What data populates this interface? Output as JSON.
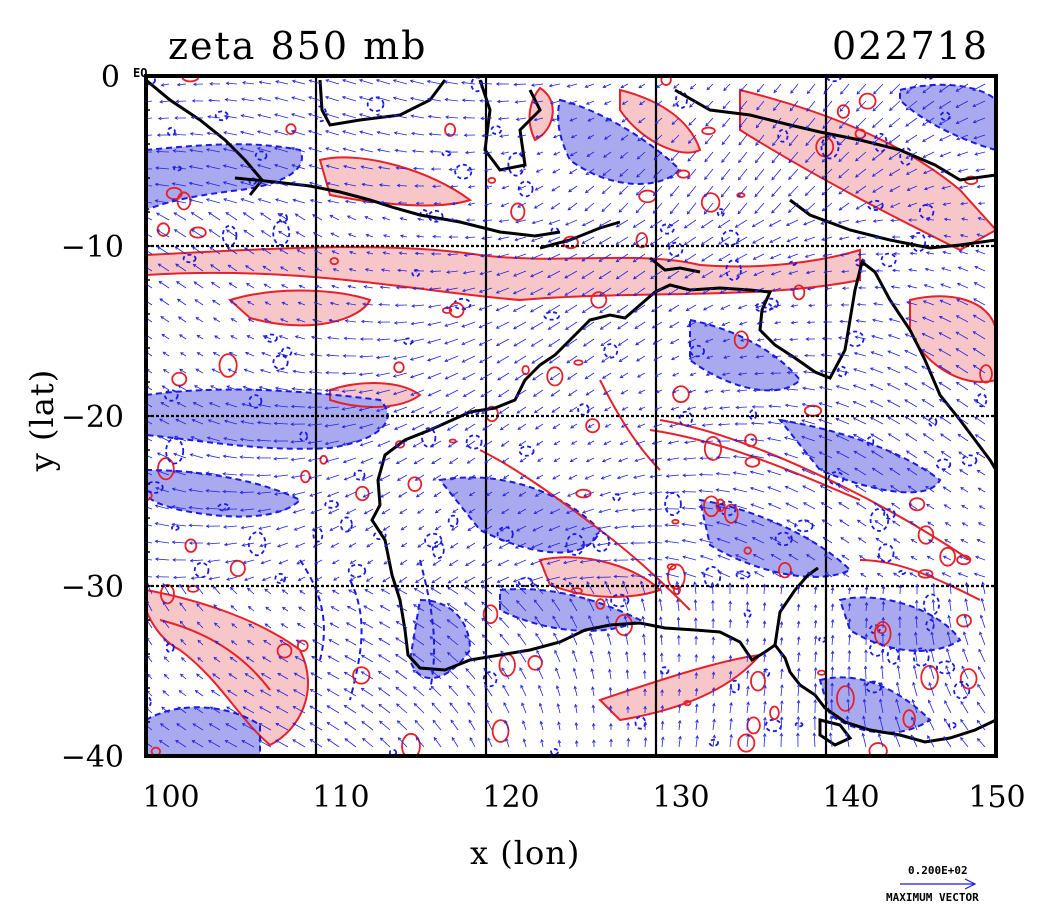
{
  "header": {
    "title_left": "zeta 850 mb",
    "title_right": "022718"
  },
  "axes": {
    "xlabel": "x (lon)",
    "ylabel": "y (lat)",
    "xticks": [
      "100",
      "110",
      "120",
      "130",
      "140",
      "150"
    ],
    "yticks": [
      "0",
      "−10",
      "−20",
      "−30",
      "−40"
    ],
    "equator_label": "EQ",
    "xlim": [
      100,
      150
    ],
    "ylim": [
      -40,
      0
    ]
  },
  "legend": {
    "vector_value": "0.200E+02",
    "vector_label": "MAXIMUM VECTOR"
  },
  "colors": {
    "positive_contour": "#e8202a",
    "positive_fill": "#f7c6c9",
    "negative_contour": "#1a1ae6",
    "negative_fill": "#a9a9f0",
    "coastline": "#000000",
    "wind_vector": "#2323e0"
  },
  "map": {
    "projection": "latitude-longitude",
    "graticule_lon": [
      110,
      120,
      130,
      140
    ],
    "graticule_lat": [
      -10,
      -20,
      -30
    ],
    "fields": [
      "relative vorticity (zeta) at 850 mb",
      "wind vectors"
    ]
  }
}
